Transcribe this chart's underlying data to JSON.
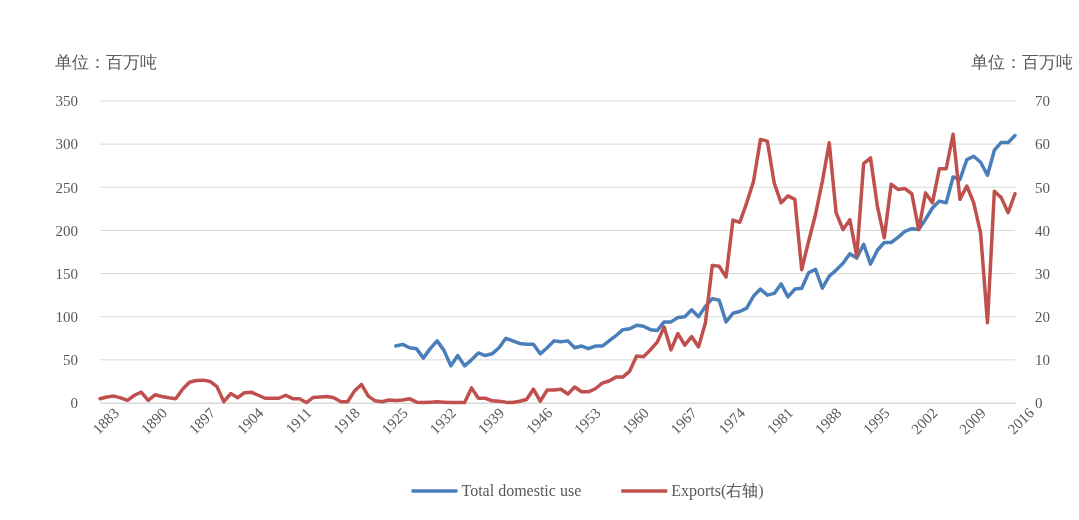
{
  "chart_data": {
    "type": "line",
    "ylabel": "单位：百万吨",
    "y2label": "单位：百万吨",
    "x": [
      1883,
      1884,
      1885,
      1886,
      1887,
      1888,
      1889,
      1890,
      1891,
      1892,
      1893,
      1894,
      1895,
      1896,
      1897,
      1898,
      1899,
      1900,
      1901,
      1902,
      1903,
      1904,
      1905,
      1906,
      1907,
      1908,
      1909,
      1910,
      1911,
      1912,
      1913,
      1914,
      1915,
      1916,
      1917,
      1918,
      1919,
      1920,
      1921,
      1922,
      1923,
      1924,
      1925,
      1926,
      1927,
      1928,
      1929,
      1930,
      1931,
      1932,
      1933,
      1934,
      1935,
      1936,
      1937,
      1938,
      1939,
      1940,
      1941,
      1942,
      1943,
      1944,
      1945,
      1946,
      1947,
      1948,
      1949,
      1950,
      1951,
      1952,
      1953,
      1954,
      1955,
      1956,
      1957,
      1958,
      1959,
      1960,
      1961,
      1962,
      1963,
      1964,
      1965,
      1966,
      1967,
      1968,
      1969,
      1970,
      1971,
      1972,
      1973,
      1974,
      1975,
      1976,
      1977,
      1978,
      1979,
      1980,
      1981,
      1982,
      1983,
      1984,
      1985,
      1986,
      1987,
      1988,
      1989,
      1990,
      1991,
      1992,
      1993,
      1994,
      1995,
      1996,
      1997,
      1998,
      1999,
      2000,
      2001,
      2002,
      2003,
      2004,
      2005,
      2006,
      2007,
      2008,
      2009,
      2010,
      2011,
      2012,
      2013,
      2014,
      2015,
      2016
    ],
    "series": [
      {
        "name": "Total domestic use",
        "color": "#4a7ebb",
        "values": [
          null,
          null,
          null,
          null,
          null,
          null,
          null,
          null,
          null,
          null,
          null,
          null,
          null,
          null,
          null,
          null,
          null,
          null,
          null,
          null,
          null,
          null,
          null,
          null,
          null,
          null,
          null,
          null,
          null,
          null,
          null,
          null,
          null,
          null,
          null,
          null,
          null,
          null,
          null,
          null,
          null,
          null,
          null,
          66,
          68,
          64,
          63,
          52,
          63,
          72,
          61,
          43,
          55,
          43,
          50,
          58,
          55,
          57,
          64,
          75,
          72,
          69,
          68,
          68,
          57,
          64,
          72,
          71,
          72,
          64,
          66,
          63,
          66,
          66,
          72,
          78,
          85,
          86,
          90,
          89,
          85,
          84,
          94,
          94,
          99,
          100,
          108,
          100,
          112,
          121,
          119,
          94,
          104,
          106,
          110,
          124,
          132,
          125,
          127,
          138,
          123,
          132,
          133,
          151,
          155,
          133,
          147,
          154,
          162,
          173,
          168,
          184,
          161,
          177,
          186,
          186,
          192,
          199,
          202,
          201,
          213,
          226,
          234,
          232,
          262,
          259,
          282,
          286,
          279,
          264,
          293,
          302,
          302,
          310
        ]
      },
      {
        "name": "Exports(右轴)",
        "color": "#c0504d",
        "axis": "y2",
        "values": [
          1,
          1.4,
          1.6,
          1.2,
          0.6,
          1.8,
          2.5,
          0.6,
          1.9,
          1.5,
          1.2,
          1,
          3.2,
          4.8,
          5.2,
          5.3,
          5,
          3.8,
          0.3,
          2.2,
          1.2,
          2.4,
          2.5,
          1.8,
          1.1,
          1.1,
          1.1,
          1.8,
          1,
          1,
          0.1,
          1.3,
          1.4,
          1.5,
          1.2,
          0.3,
          0.3,
          2.8,
          4.3,
          1.6,
          0.5,
          0.3,
          0.7,
          0.6,
          0.7,
          1,
          0.2,
          0.1,
          0.2,
          0.3,
          0.2,
          0.1,
          0.1,
          0.1,
          3.5,
          1.1,
          1.1,
          0.5,
          0.4,
          0.2,
          0.1,
          0.4,
          0.8,
          3.2,
          0.4,
          3,
          3,
          3.2,
          2.1,
          3.7,
          2.6,
          2.6,
          3.3,
          4.6,
          5.1,
          6,
          6,
          7.4,
          10.9,
          10.7,
          12.3,
          14.1,
          17.6,
          12.3,
          16.1,
          13.4,
          15.4,
          13,
          18.6,
          31.9,
          31.7,
          29.2,
          42.4,
          41.9,
          46.4,
          51.4,
          61.1,
          60.7,
          51,
          46.4,
          48,
          47.2,
          30.9,
          37.5,
          43.7,
          51.4,
          60.3,
          44.1,
          40.2,
          42.5,
          34,
          55.5,
          56.8,
          45.6,
          38.3,
          50.7,
          49.5,
          49.7,
          48.5,
          40.2,
          48.7,
          46.4,
          54.3,
          54.3,
          62.3,
          47.2,
          50.3,
          46.4,
          39.4,
          18.6,
          49.1,
          47.6,
          44.1,
          48.5
        ]
      }
    ],
    "xlim": [
      1883,
      2016
    ],
    "xticks": [
      1883,
      1890,
      1897,
      1904,
      1911,
      1918,
      1925,
      1932,
      1939,
      1946,
      1953,
      1960,
      1967,
      1974,
      1981,
      1988,
      1995,
      2002,
      2009,
      2016
    ],
    "ylim": [
      0,
      350
    ],
    "yticks": [
      0,
      50,
      100,
      150,
      200,
      250,
      300,
      350
    ],
    "y2lim": [
      0,
      70
    ],
    "y2ticks": [
      0,
      10,
      20,
      30,
      40,
      50,
      60,
      70
    ],
    "grid": "y",
    "legend": "bottom",
    "marker": "none",
    "line_style": "solid"
  }
}
